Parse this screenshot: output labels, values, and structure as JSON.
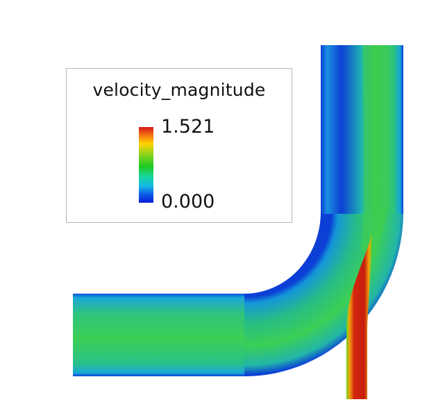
{
  "legend": {
    "title": "velocity_magnitude",
    "max_label": "1.521",
    "min_label": "0.000"
  },
  "colormap": [
    "#0a1fd8",
    "#0b55e8",
    "#14b7e6",
    "#18d6a0",
    "#1fc81f",
    "#7ed321",
    "#ffd400",
    "#f46d10",
    "#d7191c"
  ],
  "colors": {
    "pipe_main": "#2dbf74",
    "pipe_core": "#3fcf55",
    "pipe_wall": "#0a3fd0",
    "jet_core": "#c81e0e"
  }
}
